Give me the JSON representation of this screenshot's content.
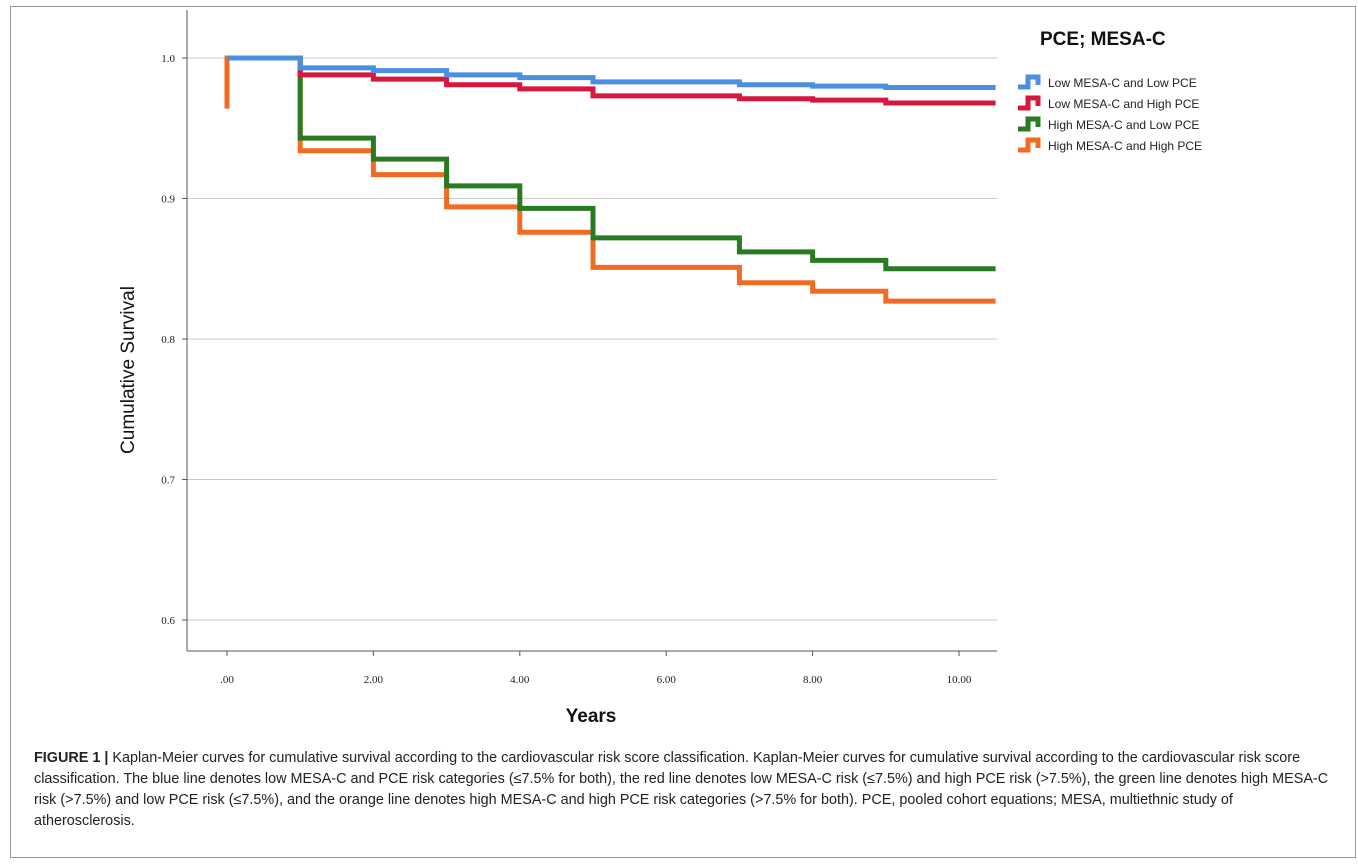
{
  "chart_data": {
    "type": "line",
    "step": true,
    "xlabel": "Years",
    "ylabel": "Cumulative Survival",
    "xlim": [
      0,
      10.5
    ],
    "ylim": [
      0.575,
      1.025
    ],
    "x_ticks": [
      0,
      2,
      4,
      6,
      8,
      10
    ],
    "x_tick_labels": [
      ".00",
      "2.00",
      "4.00",
      "6.00",
      "8.00",
      "10.00"
    ],
    "y_ticks": [
      0.6,
      0.7,
      0.8,
      0.9,
      1.0
    ],
    "y_tick_labels": [
      "0.6",
      "0.7",
      "0.8",
      "0.9",
      "1.0"
    ],
    "grid": "horizontal",
    "legend_title": "PCE; MESA-C",
    "legend_position": "top-right",
    "series": [
      {
        "name": "Low MESA-C  and Low PCE",
        "color": "#4a8fe0",
        "x": [
          0,
          1,
          2,
          3,
          4,
          5,
          7,
          8,
          9,
          10.5
        ],
        "y": [
          1.0,
          0.993,
          0.991,
          0.988,
          0.986,
          0.983,
          0.981,
          0.98,
          0.979,
          0.979
        ]
      },
      {
        "name": "Low MESA-C  and High PCE",
        "color": "#d6183e",
        "x": [
          0,
          1,
          2,
          3,
          4,
          5,
          7,
          8,
          9,
          10.5
        ],
        "y": [
          1.0,
          0.988,
          0.985,
          0.981,
          0.978,
          0.973,
          0.971,
          0.97,
          0.968,
          0.968
        ]
      },
      {
        "name": "High MESA-C  and Low PCE",
        "color": "#2a7a22",
        "x": [
          0,
          1,
          2,
          3,
          4,
          5,
          7,
          8,
          9,
          10.5
        ],
        "y": [
          1.0,
          0.943,
          0.928,
          0.909,
          0.893,
          0.872,
          0.862,
          0.856,
          0.85,
          0.85
        ]
      },
      {
        "name": "High MESA-C  and High PCE",
        "color": "#f26b22",
        "x": [
          0,
          1,
          2,
          3,
          4,
          5,
          7,
          8,
          9,
          10.5
        ],
        "y": [
          1.0,
          0.934,
          0.917,
          0.894,
          0.876,
          0.851,
          0.84,
          0.834,
          0.827,
          0.827
        ],
        "start_drop_to": 0.964
      }
    ]
  },
  "caption": {
    "lead": "FIGURE 1 |",
    "text": " Kaplan-Meier curves for cumulative survival according to the cardiovascular risk score classification. Kaplan-Meier curves for cumulative survival according to the cardiovascular risk score classification. The blue line denotes low MESA-C and PCE risk categories (≤7.5% for both), the red line denotes low MESA-C risk (≤7.5%) and high PCE risk (>7.5%), the green line denotes high MESA-C risk (>7.5%) and low PCE risk (≤7.5%), and the orange line denotes high MESA-C and high PCE risk categories (>7.5% for both). PCE, pooled cohort equations; MESA, multiethnic study of atherosclerosis."
  }
}
